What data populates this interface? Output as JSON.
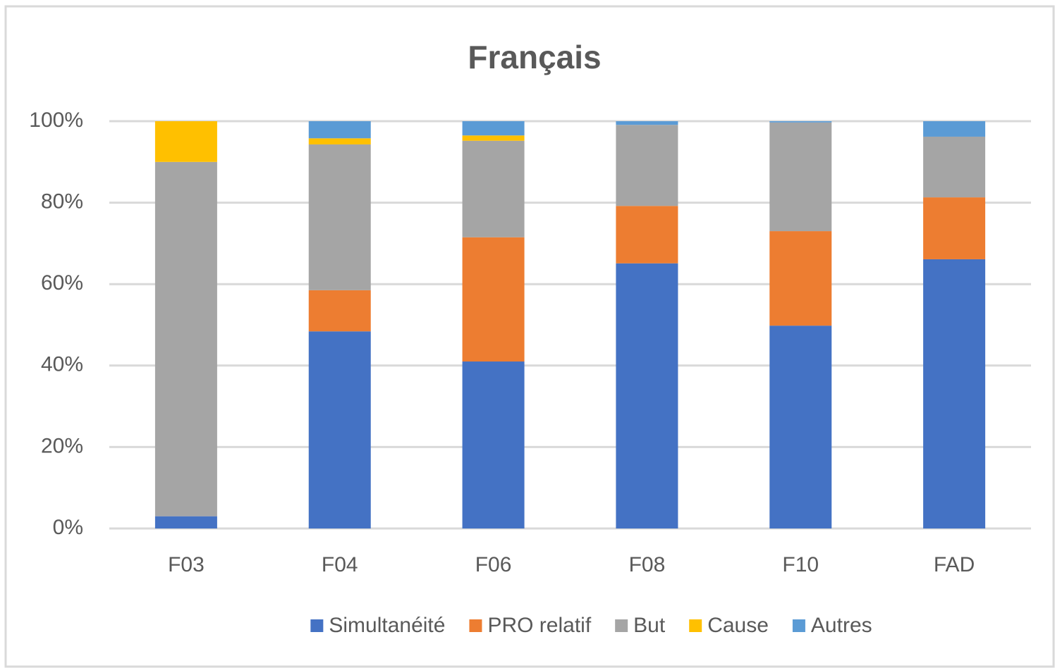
{
  "chart_data": {
    "type": "stacked_bar",
    "title": "Français",
    "categories": [
      "F03",
      "F04",
      "F06",
      "F08",
      "F10",
      "FAD"
    ],
    "series": [
      {
        "name": "Simultanéité",
        "color": "#4472c4",
        "values": [
          3,
          48.4,
          41.0,
          65.1,
          49.8,
          66.1
        ]
      },
      {
        "name": "PRO relatif",
        "color": "#ed7d31",
        "values": [
          0,
          10.1,
          30.5,
          14.1,
          23.2,
          15.2
        ]
      },
      {
        "name": "But",
        "color": "#a5a5a5",
        "values": [
          87,
          35.8,
          23.7,
          19.9,
          26.7,
          14.9
        ]
      },
      {
        "name": "Cause",
        "color": "#ffc000",
        "values": [
          10,
          1.5,
          1.3,
          0,
          0,
          0
        ]
      },
      {
        "name": "Autres",
        "color": "#5b9bd5",
        "values": [
          0,
          4.2,
          3.5,
          0.9,
          0.3,
          3.8
        ]
      }
    ],
    "ylim": [
      0,
      100
    ],
    "yticks": [
      {
        "value": 0,
        "label": "0%"
      },
      {
        "value": 20,
        "label": "20%"
      },
      {
        "value": 40,
        "label": "40%"
      },
      {
        "value": 60,
        "label": "60%"
      },
      {
        "value": 80,
        "label": "80%"
      },
      {
        "value": 100,
        "label": "100%"
      }
    ],
    "grid": true,
    "legend": "bottom"
  }
}
